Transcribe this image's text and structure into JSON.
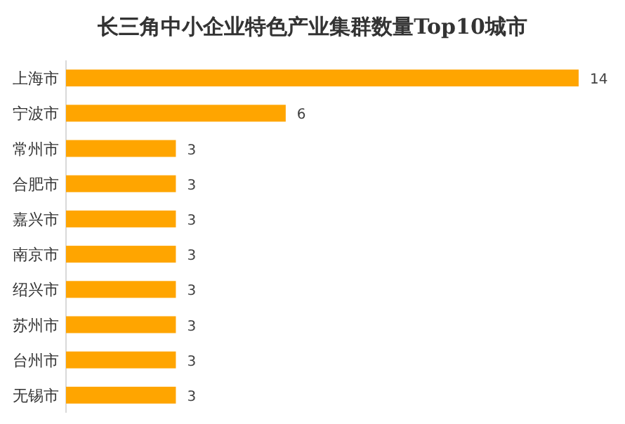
{
  "chart_data": {
    "type": "bar",
    "orientation": "horizontal",
    "title": "长三角中小企业特色产业集群数量Top10城市",
    "categories": [
      "上海市",
      "宁波市",
      "常州市",
      "合肥市",
      "嘉兴市",
      "南京市",
      "绍兴市",
      "苏州市",
      "台州市",
      "无锡市"
    ],
    "values": [
      14,
      6,
      3,
      3,
      3,
      3,
      3,
      3,
      3,
      3
    ],
    "color": "#ffa500",
    "data_labels": true
  }
}
